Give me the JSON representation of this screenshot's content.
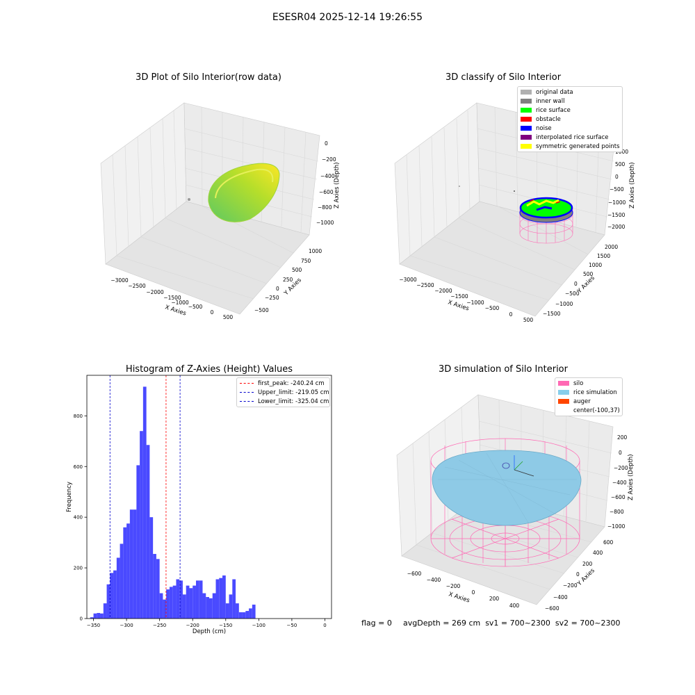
{
  "figure": {
    "title": "ESESR04 2025-12-14 19:26:55"
  },
  "panels": {
    "raw": {
      "title": "3D Plot of Silo Interior(row data)",
      "xlabel": "X Axies",
      "ylabel": "Y Axies",
      "zlabel": "Z Axies (Depth)",
      "xticks": [
        "−3000",
        "−2500",
        "−2000",
        "−1500",
        "−1000",
        "−500",
        "0",
        "500"
      ],
      "yticks": [
        "−500",
        "−250",
        "0",
        "250",
        "500",
        "750",
        "1000"
      ],
      "zticks": [
        "0",
        "−200",
        "−400",
        "−600",
        "−800",
        "−1000"
      ]
    },
    "classify": {
      "title": "3D classify of Silo Interior",
      "xlabel": "X Axies",
      "ylabel": "Y Axies",
      "zlabel": "Z Axies (Depth)",
      "xticks": [
        "−3000",
        "−2500",
        "−2000",
        "−1500",
        "−1000",
        "−500",
        "0",
        "500"
      ],
      "yticks": [
        "−1500",
        "−1000",
        "−500",
        "0",
        "500",
        "1000",
        "1500",
        "2000"
      ],
      "zticks": [
        "1000",
        "500",
        "0",
        "−500",
        "−1000",
        "−1500",
        "−2000"
      ],
      "legend": [
        {
          "label": "original data",
          "color": "#b0b0b0"
        },
        {
          "label": "inner wall",
          "color": "#808080"
        },
        {
          "label": "rice surface",
          "color": "#00ff00"
        },
        {
          "label": "obstacle",
          "color": "#ff0000"
        },
        {
          "label": "noise",
          "color": "#0000ff"
        },
        {
          "label": "interpolated rice surface",
          "color": "#800080"
        },
        {
          "label": "symmetric generated points",
          "color": "#ffff00"
        }
      ]
    },
    "simulation": {
      "title": "3D simulation of Silo Interior",
      "xlabel": "X Axies",
      "ylabel": "Y Axies",
      "zlabel": "Z Axies (Depth)",
      "xticks": [
        "−600",
        "−400",
        "−200",
        "0",
        "200",
        "400"
      ],
      "yticks": [
        "−600",
        "−400",
        "−200",
        "0",
        "200",
        "400",
        "600"
      ],
      "zticks": [
        "200",
        "0",
        "−200",
        "−400",
        "−600",
        "−800",
        "−1000"
      ],
      "legend": [
        {
          "label": "silo",
          "color": "#ff69b4"
        },
        {
          "label": "rice simulation",
          "color": "#87ceeb"
        },
        {
          "label": "auger",
          "color": "#ff4500"
        },
        {
          "label": "center(-100,37)",
          "color": ""
        }
      ]
    }
  },
  "footer": {
    "flag": "flag = 0",
    "stats": "avgDepth = 269 cm  sv1 = 700~2300  sv2 = 700~2300"
  },
  "chart_data": [
    {
      "type": "bar",
      "title": "Histogram of Z-Axies (Height) Values",
      "xlabel": "Depth (cm)",
      "ylabel": "Frequency",
      "xlim": [
        -360,
        10
      ],
      "ylim": [
        0,
        960
      ],
      "grid": false,
      "legend_position": "top-right",
      "xticks": [
        -350,
        -300,
        -250,
        -200,
        -150,
        -100,
        -50,
        0
      ],
      "yticks": [
        0,
        200,
        400,
        600,
        800
      ],
      "bin_start": -355,
      "bin_width": 5,
      "values": [
        5,
        20,
        22,
        20,
        60,
        135,
        180,
        190,
        240,
        295,
        360,
        375,
        430,
        430,
        605,
        740,
        915,
        685,
        400,
        255,
        235,
        100,
        75,
        115,
        125,
        130,
        155,
        150,
        95,
        130,
        120,
        130,
        150,
        150,
        100,
        85,
        80,
        100,
        155,
        160,
        170,
        60,
        95,
        155,
        60,
        25,
        25,
        30,
        40,
        55
      ],
      "series_color": "#4a4aff",
      "lines": [
        {
          "label": "first_peak: -240.24 cm",
          "x": -240.24,
          "color": "#ff0000"
        },
        {
          "label": "Upper_limit: -219.05 cm",
          "x": -219.05,
          "color": "#0000cc"
        },
        {
          "label": "Lower_limit: -325.04 cm",
          "x": -325.04,
          "color": "#0000cc"
        }
      ]
    }
  ]
}
